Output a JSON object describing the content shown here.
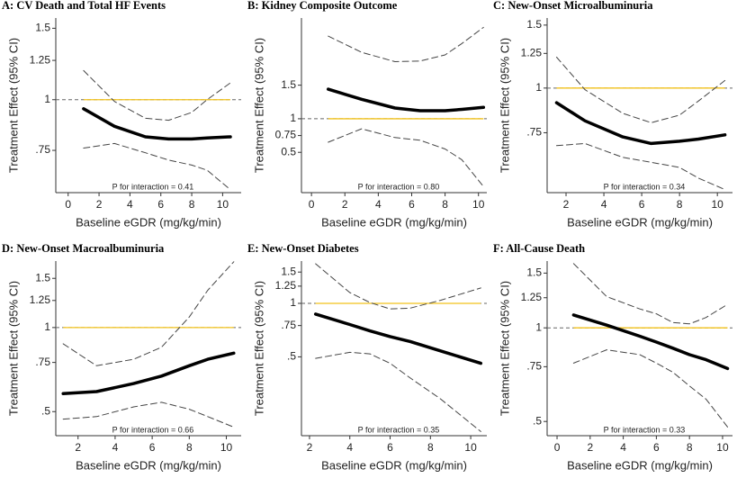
{
  "chart_data": [
    {
      "type": "line",
      "title": "A: CV Death and Total HF Events",
      "x_label": "Baseline eGDR (mg/kg/min)",
      "y_label": "Treatment Effect (95% CI)",
      "annotation": "P for interaction = 0.41",
      "log_y": true,
      "reference": 1,
      "reference_color": "#f2c21b",
      "x": [
        1,
        3,
        5,
        6.5,
        8,
        9,
        10.5
      ],
      "series": [
        {
          "color": "#000000",
          "dash": false,
          "values": [
            0.95,
            0.86,
            0.81,
            0.8,
            0.8,
            0.805,
            0.81
          ]
        },
        {
          "color": "#444444",
          "dash": true,
          "values": [
            1.18,
            0.99,
            0.9,
            0.89,
            0.93,
            1.0,
            1.1
          ]
        },
        {
          "color": "#444444",
          "dash": true,
          "values": [
            0.76,
            0.78,
            0.74,
            0.71,
            0.69,
            0.67,
            0.6
          ]
        }
      ],
      "xlim": [
        -0.8,
        11.2
      ],
      "xticks": [
        0,
        2,
        4,
        6,
        8,
        10
      ],
      "ylim": [
        0.59,
        1.59
      ],
      "yticks": [
        {
          "value": 0.75,
          "label": ".75"
        },
        1,
        1.25,
        1.5
      ]
    },
    {
      "type": "line",
      "title": "B: Kidney Composite Outcome",
      "x_label": "Baseline eGDR (mg/kg/min)",
      "y_label": "Treatment Effect (95% CI)",
      "annotation": "P for interaction = 0.80",
      "log_y": false,
      "reference": 1,
      "reference_color": "#f2c21b",
      "x": [
        1,
        3,
        5,
        6.5,
        8,
        9,
        10.3
      ],
      "series": [
        {
          "color": "#000000",
          "dash": false,
          "values": [
            1.44,
            1.29,
            1.16,
            1.12,
            1.12,
            1.14,
            1.17
          ]
        },
        {
          "color": "#444444",
          "dash": true,
          "values": [
            2.23,
            1.99,
            1.85,
            1.86,
            1.95,
            2.12,
            2.36
          ]
        },
        {
          "color": "#444444",
          "dash": true,
          "values": [
            0.65,
            0.85,
            0.72,
            0.68,
            0.55,
            0.39,
            -0.01
          ]
        }
      ],
      "xlim": [
        -0.6,
        10.5
      ],
      "xticks": [
        0,
        2,
        4,
        6,
        8,
        10
      ],
      "ylim": [
        -0.1,
        2.5
      ],
      "yticks": [
        0.5,
        0.75,
        1,
        1.5
      ]
    },
    {
      "type": "line",
      "title": "C: New-Onset Microalbuminuria",
      "x_label": "Baseline eGDR (mg/kg/min)",
      "y_label": "Treatment Effect (95% CI)",
      "annotation": "P for interaction = 0.34",
      "log_y": true,
      "reference": 1,
      "reference_color": "#f2c21b",
      "x": [
        1.5,
        3,
        5,
        6.5,
        8,
        9,
        10.4
      ],
      "series": [
        {
          "color": "#000000",
          "dash": false,
          "values": [
            0.91,
            0.81,
            0.73,
            0.7,
            0.71,
            0.72,
            0.74
          ]
        },
        {
          "color": "#444444",
          "dash": true,
          "values": [
            1.22,
            0.99,
            0.85,
            0.8,
            0.84,
            0.92,
            1.05
          ]
        },
        {
          "color": "#444444",
          "dash": true,
          "values": [
            0.69,
            0.7,
            0.64,
            0.62,
            0.6,
            0.56,
            0.52
          ]
        }
      ],
      "xlim": [
        1.0,
        10.8
      ],
      "xticks": [
        2,
        4,
        6,
        8,
        10
      ],
      "ylim": [
        0.51,
        1.57
      ],
      "yticks": [
        {
          "value": 0.75,
          "label": ".75"
        },
        1,
        1.25,
        1.5
      ]
    },
    {
      "type": "line",
      "title": "D: New-Onset Macroalbuminuria",
      "x_label": "Baseline eGDR (mg/kg/min)",
      "y_label": "Treatment Effect (95% CI)",
      "annotation": "P for interaction = 0.66",
      "log_y": true,
      "reference": 1,
      "reference_color": "#f2c21b",
      "x": [
        1.2,
        3,
        5,
        6.5,
        8,
        9,
        10.4
      ],
      "series": [
        {
          "color": "#000000",
          "dash": false,
          "values": [
            0.58,
            0.59,
            0.63,
            0.67,
            0.73,
            0.77,
            0.81
          ]
        },
        {
          "color": "#444444",
          "dash": true,
          "values": [
            0.875,
            0.73,
            0.77,
            0.85,
            1.09,
            1.36,
            1.72
          ]
        },
        {
          "color": "#444444",
          "dash": true,
          "values": [
            0.47,
            0.48,
            0.52,
            0.54,
            0.51,
            0.48,
            0.44
          ]
        }
      ],
      "xlim": [
        0.8,
        10.8
      ],
      "xticks": [
        2,
        4,
        6,
        8,
        10
      ],
      "ylim": [
        0.41,
        1.73
      ],
      "yticks": [
        {
          "value": 0.5,
          "label": ".5"
        },
        {
          "value": 0.75,
          "label": ".75"
        },
        1,
        1.25,
        1.5
      ]
    },
    {
      "type": "line",
      "title": "E: New-Onset Diabetes",
      "x_label": "Baseline eGDR (mg/kg/min)",
      "y_label": "Treatment Effect (95% CI)",
      "annotation": "P for interaction = 0.35",
      "log_y": true,
      "reference": 1,
      "reference_color": "#f2c21b",
      "x": [
        2.3,
        4,
        5,
        6,
        7,
        8.5,
        10.5
      ],
      "series": [
        {
          "color": "#000000",
          "dash": false,
          "values": [
            0.87,
            0.76,
            0.7,
            0.65,
            0.61,
            0.54,
            0.46
          ]
        },
        {
          "color": "#444444",
          "dash": true,
          "values": [
            1.67,
            1.15,
            1.01,
            0.93,
            0.94,
            1.04,
            1.22
          ]
        },
        {
          "color": "#444444",
          "dash": true,
          "values": [
            0.49,
            0.53,
            0.52,
            0.46,
            0.38,
            0.29,
            0.19
          ]
        }
      ],
      "xlim": [
        1.6,
        10.8
      ],
      "xticks": [
        2,
        4,
        6,
        8,
        10
      ],
      "ylim": [
        0.18,
        1.73
      ],
      "yticks": [
        {
          "value": 0.5,
          "label": ".5"
        },
        {
          "value": 0.75,
          "label": ".75"
        },
        1,
        1.25,
        1.5
      ]
    },
    {
      "type": "line",
      "title": "F: All-Cause Death",
      "x_label": "Baseline eGDR (mg/kg/min)",
      "y_label": "Treatment Effect (95% CI)",
      "annotation": "P for interaction = 0.33",
      "log_y": true,
      "reference": 1,
      "reference_color": "#f2c21b",
      "x": [
        1,
        3,
        5,
        6,
        7,
        8,
        9,
        10.3
      ],
      "series": [
        {
          "color": "#000000",
          "dash": false,
          "values": [
            1.1,
            1.02,
            0.94,
            0.9,
            0.86,
            0.82,
            0.79,
            0.74
          ]
        },
        {
          "color": "#444444",
          "dash": true,
          "values": [
            1.61,
            1.26,
            1.15,
            1.11,
            1.04,
            1.03,
            1.08,
            1.19
          ]
        },
        {
          "color": "#444444",
          "dash": true,
          "values": [
            0.77,
            0.85,
            0.82,
            0.77,
            0.72,
            0.65,
            0.59,
            0.48
          ]
        }
      ],
      "xlim": [
        -0.6,
        10.6
      ],
      "xticks": [
        0,
        2,
        4,
        6,
        8,
        10
      ],
      "ylim": [
        0.45,
        1.64
      ],
      "yticks": [
        {
          "value": 0.5,
          "label": ".5"
        },
        {
          "value": 0.75,
          "label": ".75"
        },
        1,
        1.25,
        1.5
      ]
    }
  ]
}
